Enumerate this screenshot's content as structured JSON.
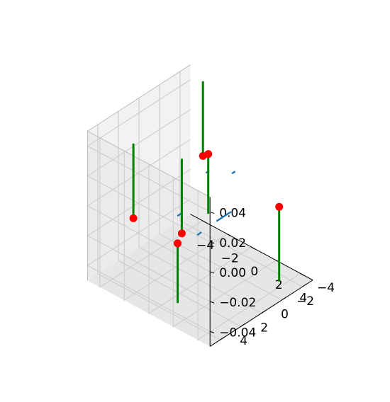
{
  "chart_data": {
    "type": "scatter",
    "projection": "3d",
    "title": "",
    "xlabel": "",
    "ylabel": "",
    "zlabel": "",
    "xlim": [
      -5,
      5
    ],
    "ylim": [
      -5,
      5
    ],
    "zlim": [
      -0.05,
      0.05
    ],
    "x_ticks": [
      "−4",
      "−2",
      "0",
      "2",
      "4"
    ],
    "y_ticks": [
      "−4",
      "−2",
      "0",
      "2",
      "4"
    ],
    "z_ticks": [
      "−0.04",
      "−0.02",
      "0.00",
      "0.02",
      "0.04"
    ],
    "grid": true,
    "legend": "none",
    "series": [
      {
        "kind": "markers",
        "color": "#ff0000",
        "points": [
          {
            "x": -3.2,
            "y": -4.6,
            "z": 0.0
          },
          {
            "x": -3.3,
            "y": -4.2,
            "z": 0.0
          },
          {
            "x": -2.1,
            "y": 4.0,
            "z": 0.0
          },
          {
            "x": 3.6,
            "y": -3.4,
            "z": 0.0
          },
          {
            "x": 1.6,
            "y": 4.1,
            "z": 0.0
          },
          {
            "x": 1.1,
            "y": 3.1,
            "z": 0.0
          }
        ]
      },
      {
        "kind": "vertical-segments",
        "color": "#008000",
        "segments": [
          {
            "x": -3.2,
            "y": -4.6,
            "z0": 0.0,
            "z1": -0.04
          },
          {
            "x": -3.3,
            "y": -4.2,
            "z0": 0.0,
            "z1": 0.05
          },
          {
            "x": -2.1,
            "y": 4.0,
            "z0": 0.0,
            "z1": 0.05
          },
          {
            "x": 3.6,
            "y": -3.4,
            "z0": 0.0,
            "z1": -0.05
          },
          {
            "x": 1.6,
            "y": 4.1,
            "z0": 0.0,
            "z1": -0.04
          },
          {
            "x": 1.1,
            "y": 3.1,
            "z0": 0.0,
            "z1": 0.05
          }
        ]
      },
      {
        "kind": "tangent-segments",
        "color": "#1f77b4",
        "segments": [
          {
            "x0": -0.8,
            "y0": -4.3,
            "x1": -0.8,
            "y1": -4.1
          },
          {
            "x0": -2.0,
            "y0": -3.2,
            "x1": -2.0,
            "y1": -3.0
          },
          {
            "x0": -0.3,
            "y0": 1.5,
            "x1": -0.3,
            "y1": 1.8
          },
          {
            "x0": 1.9,
            "y0": 2.2,
            "x1": 1.9,
            "y1": 2.5
          },
          {
            "x0": 1.8,
            "y0": -0.8,
            "x1": 1.8,
            "y1": 0.5
          }
        ]
      }
    ]
  }
}
